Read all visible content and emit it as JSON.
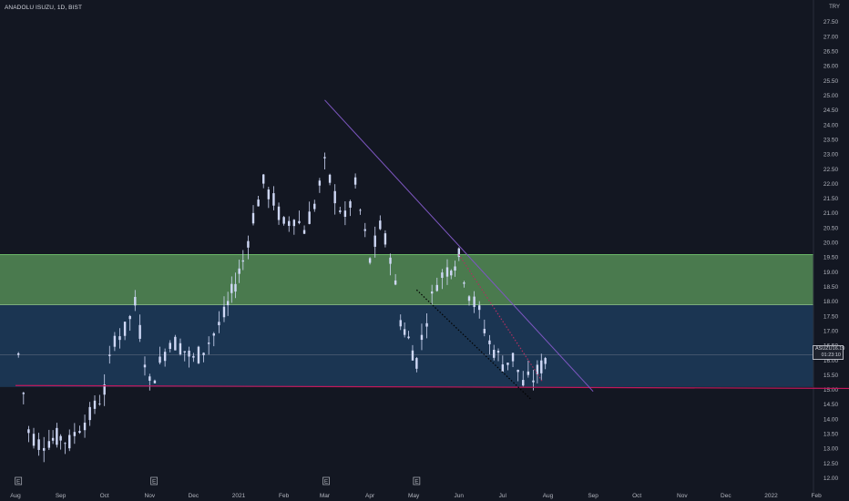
{
  "header": {
    "symbol_title": "ANADOLU ISUZU, 1D, BIST",
    "currency": "TRY"
  },
  "price_tag": {
    "ticker": "ASUZU",
    "price": "16.19",
    "countdown": "01:23:10"
  },
  "colors": {
    "background": "#131722",
    "candle": "#cfd8f6",
    "green_zone": "#4a7a4e",
    "blue_zone": "#1b3552",
    "support_line": "#c2185b",
    "trend_line": "#7e57c2",
    "dotted_trend": "#000000"
  },
  "chart_data": {
    "type": "candlestick",
    "title": "",
    "xlabel": "",
    "ylabel": "",
    "ylim": [
      11.6,
      27.8
    ],
    "x_ticks": [
      "Aug",
      "Sep",
      "Oct",
      "Nov",
      "Dec",
      "2021",
      "Feb",
      "Mar",
      "Apr",
      "May",
      "Jun",
      "Jul",
      "Aug",
      "Sep",
      "Oct",
      "Nov",
      "Dec",
      "2022",
      "Feb"
    ],
    "y_ticks": [
      "12.00",
      "12.50",
      "13.00",
      "13.50",
      "14.00",
      "14.50",
      "15.00",
      "15.50",
      "16.00",
      "16.50",
      "17.00",
      "17.50",
      "18.00",
      "18.50",
      "19.00",
      "19.50",
      "20.00",
      "20.50",
      "21.00",
      "21.50",
      "22.00",
      "22.50",
      "23.00",
      "23.50",
      "24.00",
      "24.50",
      "25.00",
      "25.50",
      "26.00",
      "26.50",
      "27.00",
      "27.50"
    ],
    "zones": [
      {
        "name": "",
        "from": 17.9,
        "to": 19.6
      },
      {
        "name": "",
        "from": 15.1,
        "to": 17.9
      }
    ],
    "current_price_line": 16.19,
    "support_line": {
      "from": [
        "2020-08-01",
        15.15
      ],
      "to": [
        "2022-03-01",
        15.05
      ]
    },
    "trend_line": {
      "from": [
        "2021-03-01",
        24.85
      ],
      "to": [
        "2021-09-01",
        14.95
      ]
    },
    "dotted_lines": [
      {
        "from": [
          "2021-05-03",
          18.4
        ],
        "to": [
          "2021-07-20",
          14.7
        ]
      },
      {
        "from": [
          "2021-06-01",
          19.6
        ],
        "to": [
          "2021-07-28",
          15.3
        ]
      }
    ],
    "earnings_markers": [
      "2020-08-03",
      "2020-11-04",
      "2021-03-02",
      "2021-05-03"
    ],
    "close_series": [
      {
        "date": "2020-08-03",
        "close": 16.2
      },
      {
        "date": "2020-08-10",
        "close": 13.6
      },
      {
        "date": "2020-08-17",
        "close": 13.2
      },
      {
        "date": "2020-08-24",
        "close": 13.3
      },
      {
        "date": "2020-09-01",
        "close": 13.4
      },
      {
        "date": "2020-09-07",
        "close": 13.2
      },
      {
        "date": "2020-09-14",
        "close": 13.8
      },
      {
        "date": "2020-09-21",
        "close": 14.1
      },
      {
        "date": "2020-10-01",
        "close": 15.0
      },
      {
        "date": "2020-10-08",
        "close": 16.8
      },
      {
        "date": "2020-10-15",
        "close": 17.0
      },
      {
        "date": "2020-10-22",
        "close": 17.9
      },
      {
        "date": "2020-11-01",
        "close": 15.2
      },
      {
        "date": "2020-11-08",
        "close": 15.9
      },
      {
        "date": "2020-11-15",
        "close": 16.7
      },
      {
        "date": "2020-11-22",
        "close": 16.5
      },
      {
        "date": "2020-12-01",
        "close": 16.0
      },
      {
        "date": "2020-12-08",
        "close": 16.4
      },
      {
        "date": "2020-12-15",
        "close": 16.9
      },
      {
        "date": "2020-12-22",
        "close": 17.5
      },
      {
        "date": "2021-01-04",
        "close": 19.4
      },
      {
        "date": "2021-01-11",
        "close": 20.9
      },
      {
        "date": "2021-01-18",
        "close": 22.0
      },
      {
        "date": "2021-01-25",
        "close": 21.4
      },
      {
        "date": "2021-02-01",
        "close": 20.6
      },
      {
        "date": "2021-02-08",
        "close": 20.9
      },
      {
        "date": "2021-02-15",
        "close": 20.5
      },
      {
        "date": "2021-02-22",
        "close": 21.3
      },
      {
        "date": "2021-03-01",
        "close": 22.6
      },
      {
        "date": "2021-03-08",
        "close": 21.6
      },
      {
        "date": "2021-03-15",
        "close": 20.8
      },
      {
        "date": "2021-03-22",
        "close": 21.9
      },
      {
        "date": "2021-04-01",
        "close": 19.4
      },
      {
        "date": "2021-04-08",
        "close": 20.5
      },
      {
        "date": "2021-04-15",
        "close": 19.6
      },
      {
        "date": "2021-04-22",
        "close": 17.4
      },
      {
        "date": "2021-05-03",
        "close": 16.0
      },
      {
        "date": "2021-05-10",
        "close": 17.5
      },
      {
        "date": "2021-05-17",
        "close": 18.7
      },
      {
        "date": "2021-05-24",
        "close": 19.1
      },
      {
        "date": "2021-06-01",
        "close": 19.5
      },
      {
        "date": "2021-06-08",
        "close": 18.3
      },
      {
        "date": "2021-06-15",
        "close": 17.6
      },
      {
        "date": "2021-06-22",
        "close": 16.6
      },
      {
        "date": "2021-07-01",
        "close": 15.9
      },
      {
        "date": "2021-07-08",
        "close": 16.1
      },
      {
        "date": "2021-07-15",
        "close": 15.2
      },
      {
        "date": "2021-07-22",
        "close": 15.4
      },
      {
        "date": "2021-08-02",
        "close": 16.19
      }
    ]
  }
}
